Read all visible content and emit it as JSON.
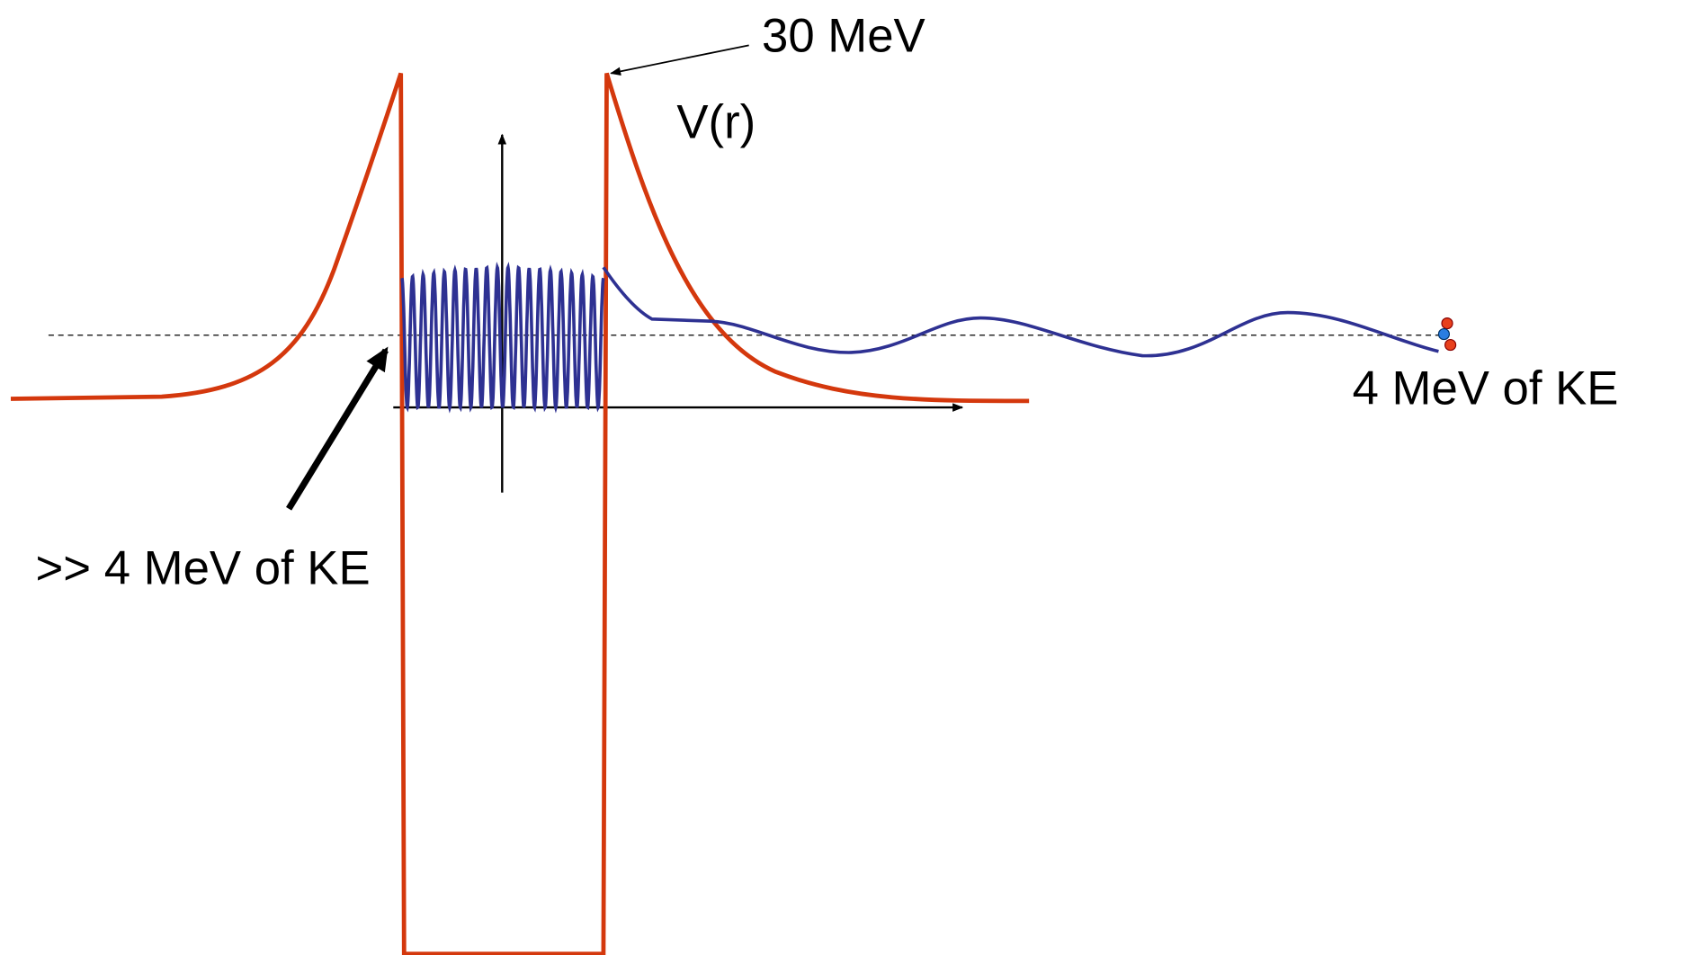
{
  "labels": {
    "barrier_height": "30 MeV",
    "potential": "V(r)",
    "outside_energy": "4 MeV of KE",
    "inside_energy": ">> 4 MeV of KE"
  }
}
